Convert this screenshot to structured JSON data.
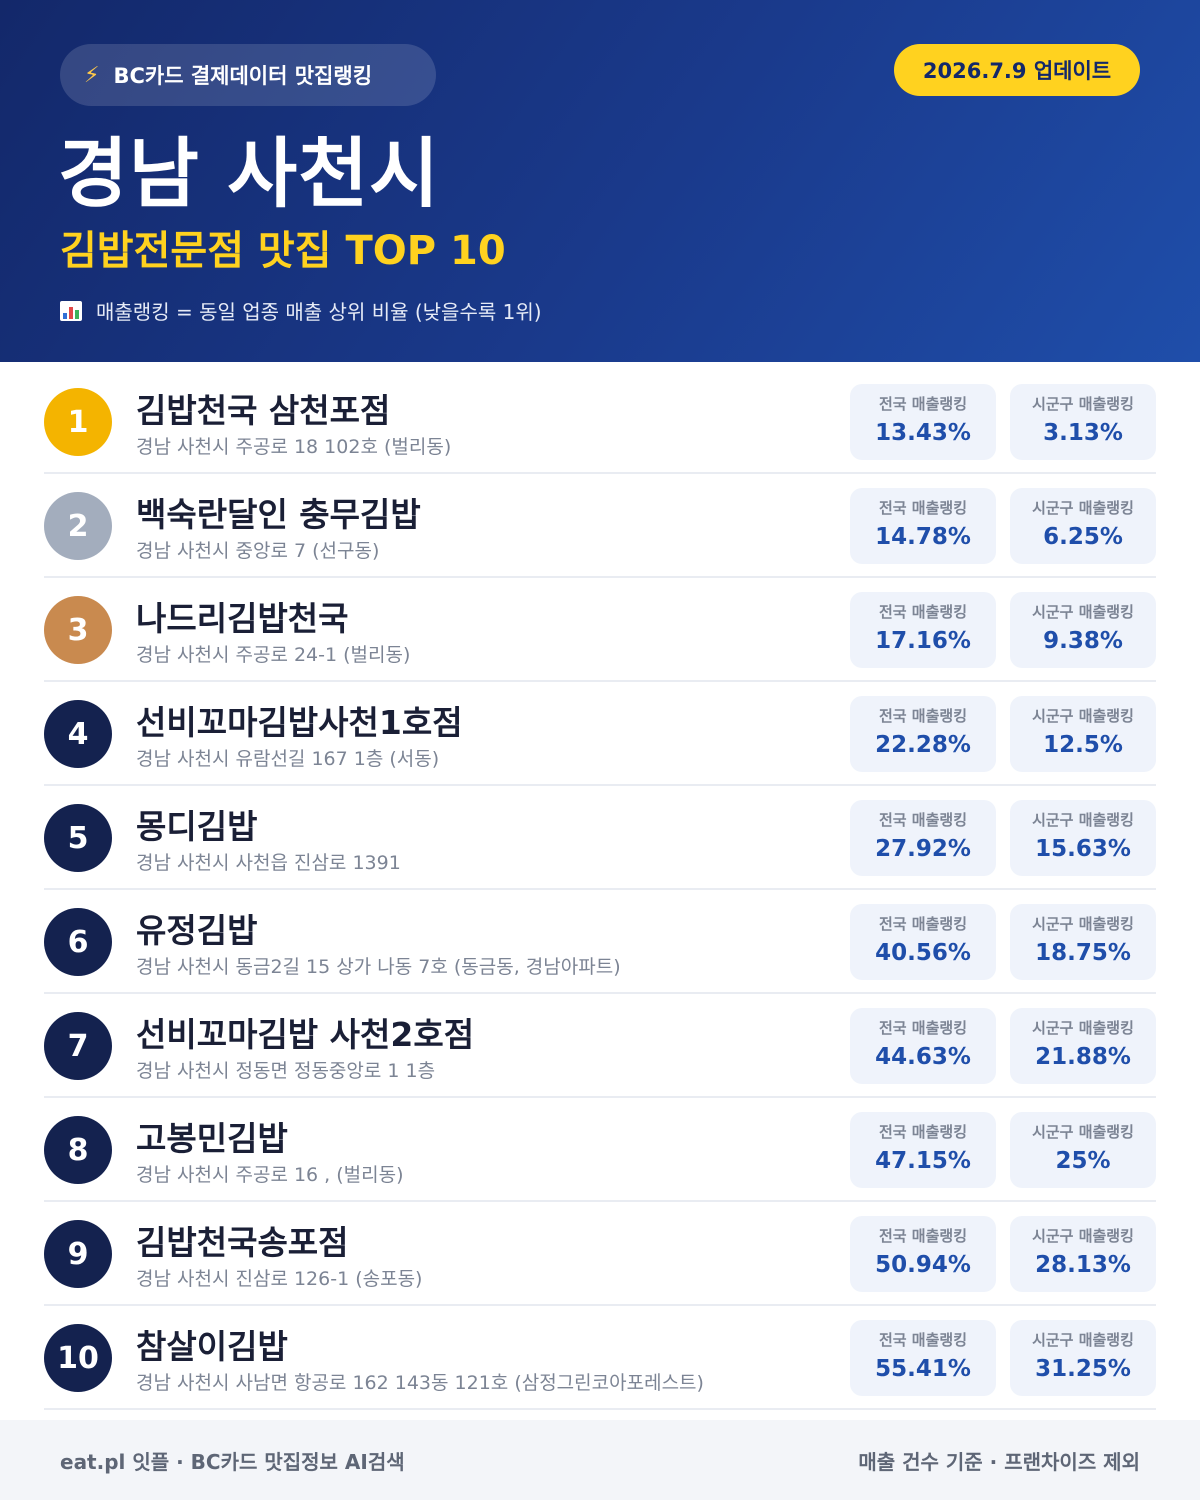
{
  "header": {
    "brand_label": "BC카드 결제데이터 맛집랭킹",
    "update_label": "2026.7.9 업데이트",
    "city_title": "경남 사천시",
    "subtitle": "김밥전문점 맛집 TOP 10",
    "legend_note": "매출랭킹 = 동일 업종 매출 상위 비율 (낮을수록 1위)"
  },
  "labels": {
    "national": "전국 매출랭킹",
    "local": "시군구 매출랭킹"
  },
  "rankings": [
    {
      "rank": "1",
      "name": "김밥천국 삼천포점",
      "address": "경남 사천시 주공로 18 102호 (벌리동)",
      "national": "13.43%",
      "local": "3.13%"
    },
    {
      "rank": "2",
      "name": "백숙란달인 충무김밥",
      "address": "경남 사천시 중앙로 7 (선구동)",
      "national": "14.78%",
      "local": "6.25%"
    },
    {
      "rank": "3",
      "name": "나드리김밥천국",
      "address": "경남 사천시 주공로 24-1 (벌리동)",
      "national": "17.16%",
      "local": "9.38%"
    },
    {
      "rank": "4",
      "name": "선비꼬마김밥사천1호점",
      "address": "경남 사천시 유람선길 167 1층 (서동)",
      "national": "22.28%",
      "local": "12.5%"
    },
    {
      "rank": "5",
      "name": "몽디김밥",
      "address": "경남 사천시 사천읍 진삼로 1391",
      "national": "27.92%",
      "local": "15.63%"
    },
    {
      "rank": "6",
      "name": "유정김밥",
      "address": "경남 사천시 동금2길 15 상가 나동 7호 (동금동, 경남아파트)",
      "national": "40.56%",
      "local": "18.75%"
    },
    {
      "rank": "7",
      "name": "선비꼬마김밥 사천2호점",
      "address": "경남 사천시 정동면 정동중앙로 1 1층",
      "national": "44.63%",
      "local": "21.88%"
    },
    {
      "rank": "8",
      "name": "고봉민김밥",
      "address": "경남 사천시 주공로 16 , (벌리동)",
      "national": "47.15%",
      "local": "25%"
    },
    {
      "rank": "9",
      "name": "김밥천국송포점",
      "address": "경남 사천시 진삼로 126-1 (송포동)",
      "national": "50.94%",
      "local": "28.13%"
    },
    {
      "rank": "10",
      "name": "참살이김밥",
      "address": "경남 사천시 사남면 항공로 162 143동 121호 (삼정그린코아포레스트)",
      "national": "55.41%",
      "local": "31.25%"
    }
  ],
  "footer": {
    "left": "eat.pl 잇플 · BC카드 맛집정보 AI검색",
    "right": "매출 건수 기준 · 프랜차이즈 제외"
  },
  "colors": {
    "header_dark": "#13286a",
    "header_light": "#1f4eaa",
    "accent_yellow": "#ffd21f",
    "gold": "#f4b400",
    "silver": "#a3adbd",
    "bronze": "#c98a4f",
    "navy_rank": "#14224f",
    "metric_value": "#1f4eaa"
  }
}
